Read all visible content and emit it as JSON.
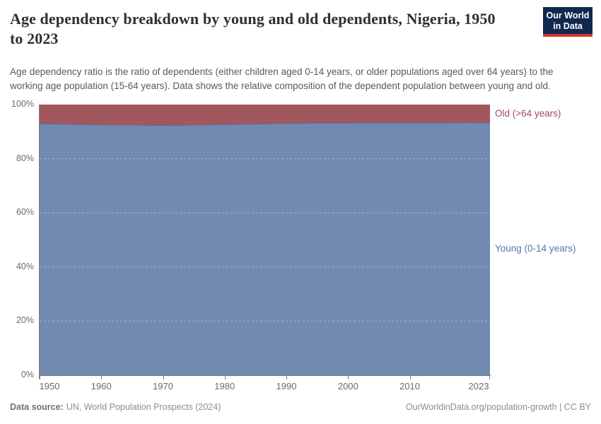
{
  "header": {
    "title": "Age dependency breakdown by young and old dependents, Nigeria, 1950 to 2023",
    "subtitle": "Age dependency ratio is the ratio of dependents (either children aged 0-14 years, or older populations aged over 64 years) to the working age population (15-64 years). Data shows the relative composition of the dependent population between young and old.",
    "logo": {
      "line1": "Our World",
      "line2": "in Data",
      "bg_color": "#12294e",
      "bar_color": "#d0342c"
    }
  },
  "chart_data": {
    "type": "area",
    "stacked": true,
    "title": "Age dependency breakdown by young and old dependents, Nigeria, 1950 to 2023",
    "unit": "%",
    "xlabel": "",
    "ylabel": "",
    "ylim": [
      0,
      100
    ],
    "xlim": [
      1950,
      2023
    ],
    "grid": "dashed-horizontal",
    "gridlines_at": [
      20,
      40,
      60,
      80
    ],
    "legend_position": "right-of-plot",
    "x": [
      1950,
      1955,
      1960,
      1965,
      1970,
      1975,
      1980,
      1985,
      1990,
      1995,
      2000,
      2005,
      2010,
      2015,
      2020,
      2023
    ],
    "series": [
      {
        "name": "Young (0-14 years)",
        "color": "#7289b0",
        "edge_color": "#5b6f99",
        "label_color": "#5577ab",
        "values": [
          92.9,
          92.7,
          92.5,
          92.4,
          92.3,
          92.4,
          92.6,
          92.8,
          93.0,
          93.1,
          93.1,
          93.2,
          93.2,
          93.2,
          93.3,
          93.3
        ]
      },
      {
        "name": "Old (>64 years)",
        "color": "#a2565e",
        "label_color": "#9d4e58",
        "values": [
          7.1,
          7.3,
          7.5,
          7.6,
          7.7,
          7.6,
          7.4,
          7.2,
          7.0,
          6.9,
          6.9,
          6.8,
          6.8,
          6.8,
          6.7,
          6.7
        ]
      }
    ],
    "yticks": [
      {
        "v": 0,
        "label": "0%"
      },
      {
        "v": 20,
        "label": "20%"
      },
      {
        "v": 40,
        "label": "40%"
      },
      {
        "v": 60,
        "label": "60%"
      },
      {
        "v": 80,
        "label": "80%"
      },
      {
        "v": 100,
        "label": "100%"
      }
    ],
    "xticks": [
      {
        "v": 1950,
        "label": "1950"
      },
      {
        "v": 1960,
        "label": "1960"
      },
      {
        "v": 1970,
        "label": "1970"
      },
      {
        "v": 1980,
        "label": "1980"
      },
      {
        "v": 1990,
        "label": "1990"
      },
      {
        "v": 2000,
        "label": "2000"
      },
      {
        "v": 2010,
        "label": "2010"
      },
      {
        "v": 2023,
        "label": "2023"
      }
    ]
  },
  "footer": {
    "source_label": "Data source:",
    "source_text": "UN, World Population Prospects (2024)",
    "credit": "OurWorldinData.org/population-growth | CC BY"
  }
}
